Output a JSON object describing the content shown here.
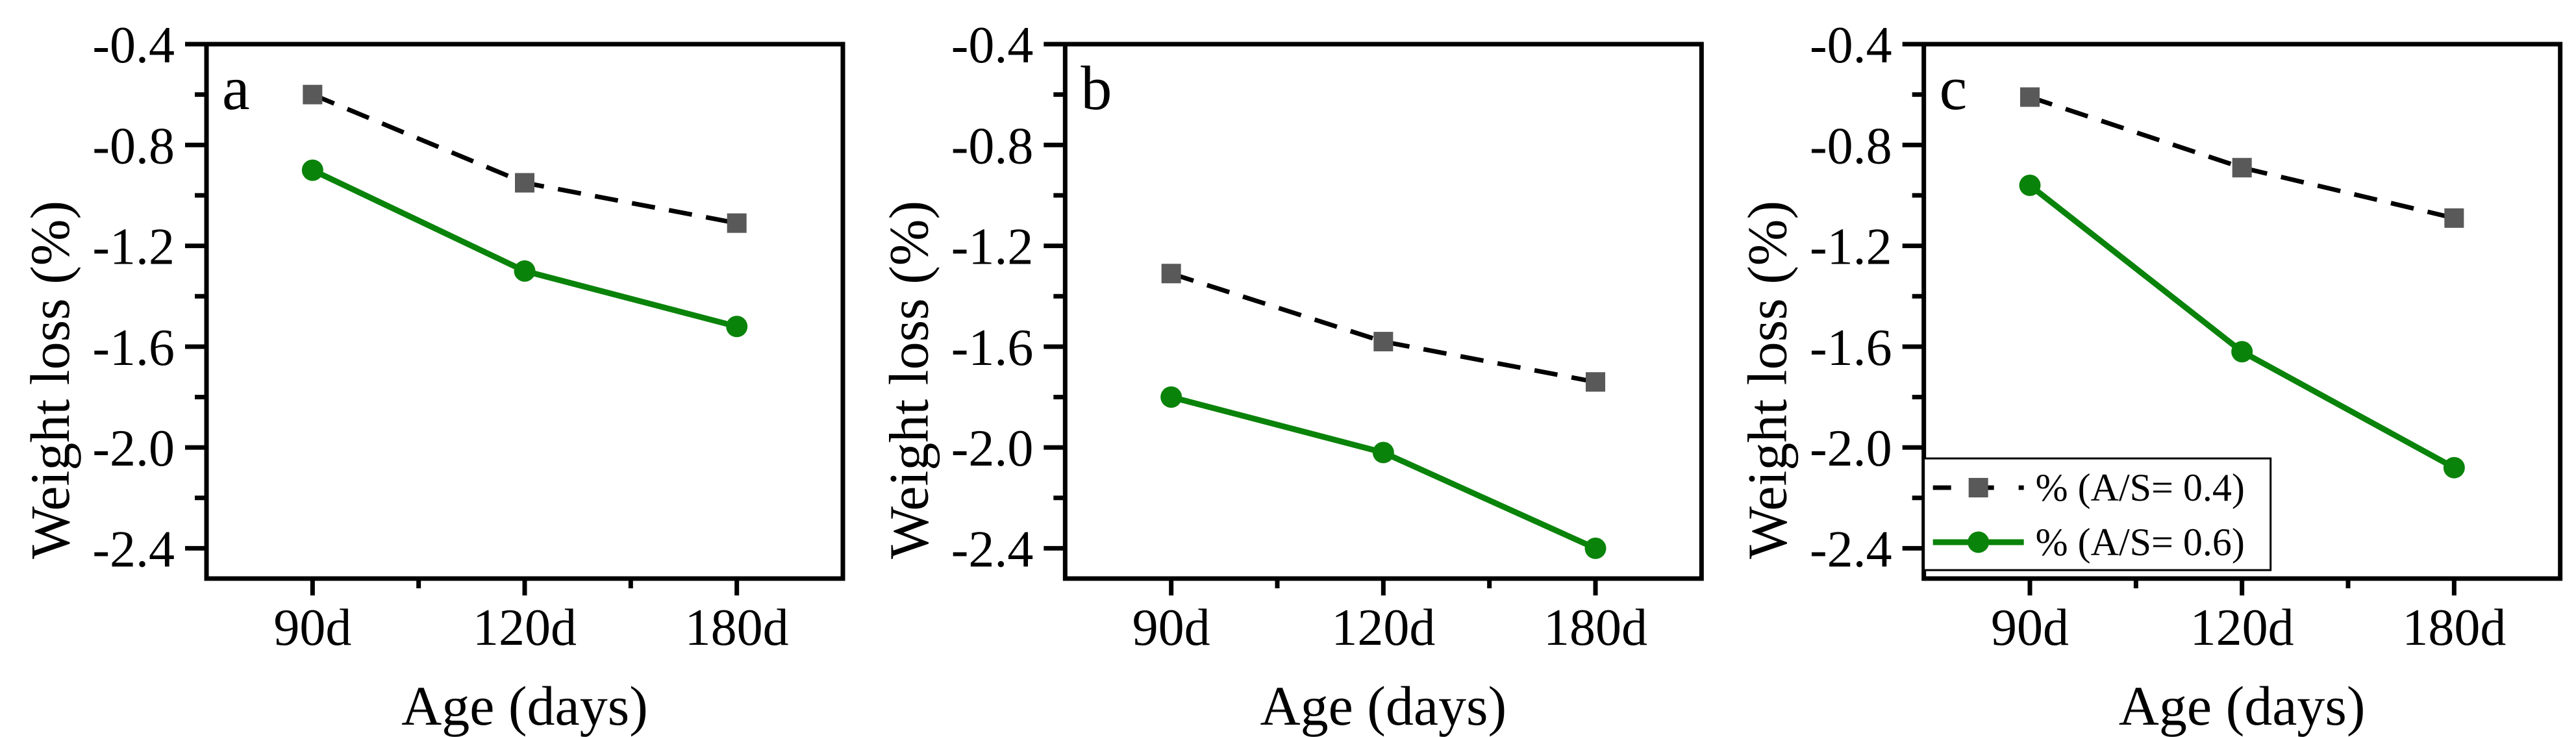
{
  "figure": {
    "background": "#ffffff",
    "axis_color": "#000000",
    "description": "Three-panel line chart of weight loss versus age"
  },
  "chart_data": [
    {
      "type": "line",
      "panel_label": "a",
      "categories": [
        "90d",
        "120d",
        "180d"
      ],
      "xlabel": "Age (days)",
      "ylabel": "Weight loss (%)",
      "ytick_labels": [
        "-0.4",
        "-0.8",
        "-1.2",
        "-1.6",
        "-2.0",
        "-2.4"
      ],
      "ytick_values": [
        -0.4,
        -0.8,
        -1.2,
        -1.6,
        -2.0,
        -2.4
      ],
      "yminor_values": [
        -0.6,
        -1.0,
        -1.4,
        -1.8,
        -2.2
      ],
      "ylim": [
        -0.4,
        -2.52
      ],
      "grid": false,
      "legend_visible": false,
      "series": [
        {
          "name": "% (A/S= 0.4)",
          "marker": "square",
          "marker_color": "#595959",
          "line_color": "#000000",
          "line_style": "dashed",
          "values": [
            -0.6,
            -0.95,
            -1.11
          ]
        },
        {
          "name": "% (A/S= 0.6)",
          "marker": "circle",
          "marker_color": "#0a830a",
          "line_color": "#0a830a",
          "line_style": "solid",
          "values": [
            -0.9,
            -1.3,
            -1.52
          ]
        }
      ]
    },
    {
      "type": "line",
      "panel_label": "b",
      "categories": [
        "90d",
        "120d",
        "180d"
      ],
      "xlabel": "Age (days)",
      "ylabel": "Weight loss (%)",
      "ytick_labels": [
        "-0.4",
        "-0.8",
        "-1.2",
        "-1.6",
        "-2.0",
        "-2.4"
      ],
      "ytick_values": [
        -0.4,
        -0.8,
        -1.2,
        -1.6,
        -2.0,
        -2.4
      ],
      "yminor_values": [
        -0.6,
        -1.0,
        -1.4,
        -1.8,
        -2.2
      ],
      "ylim": [
        -0.4,
        -2.52
      ],
      "grid": false,
      "legend_visible": false,
      "series": [
        {
          "name": "% (A/S= 0.4)",
          "marker": "square",
          "marker_color": "#595959",
          "line_color": "#000000",
          "line_style": "dashed",
          "values": [
            -1.31,
            -1.58,
            -1.74
          ]
        },
        {
          "name": "% (A/S= 0.6)",
          "marker": "circle",
          "marker_color": "#0a830a",
          "line_color": "#0a830a",
          "line_style": "solid",
          "values": [
            -1.8,
            -2.02,
            -2.4
          ]
        }
      ]
    },
    {
      "type": "line",
      "panel_label": "c",
      "categories": [
        "90d",
        "120d",
        "180d"
      ],
      "xlabel": "Age (days)",
      "ylabel": "Weight loss (%)",
      "ytick_labels": [
        "-0.4",
        "-0.8",
        "-1.2",
        "-1.6",
        "-2.0",
        "-2.4"
      ],
      "ytick_values": [
        -0.4,
        -0.8,
        -1.2,
        -1.6,
        -2.0,
        -2.4
      ],
      "yminor_values": [
        -0.6,
        -1.0,
        -1.4,
        -1.8,
        -2.2
      ],
      "ylim": [
        -0.4,
        -2.52
      ],
      "grid": false,
      "legend_visible": true,
      "legend_position": "lower-left",
      "series": [
        {
          "name": "% (A/S= 0.4)",
          "marker": "square",
          "marker_color": "#595959",
          "line_color": "#000000",
          "line_style": "dashed",
          "values": [
            -0.61,
            -0.89,
            -1.09
          ]
        },
        {
          "name": "% (A/S= 0.6)",
          "marker": "circle",
          "marker_color": "#0a830a",
          "line_color": "#0a830a",
          "line_style": "solid",
          "values": [
            -0.96,
            -1.62,
            -2.08
          ]
        }
      ]
    }
  ]
}
